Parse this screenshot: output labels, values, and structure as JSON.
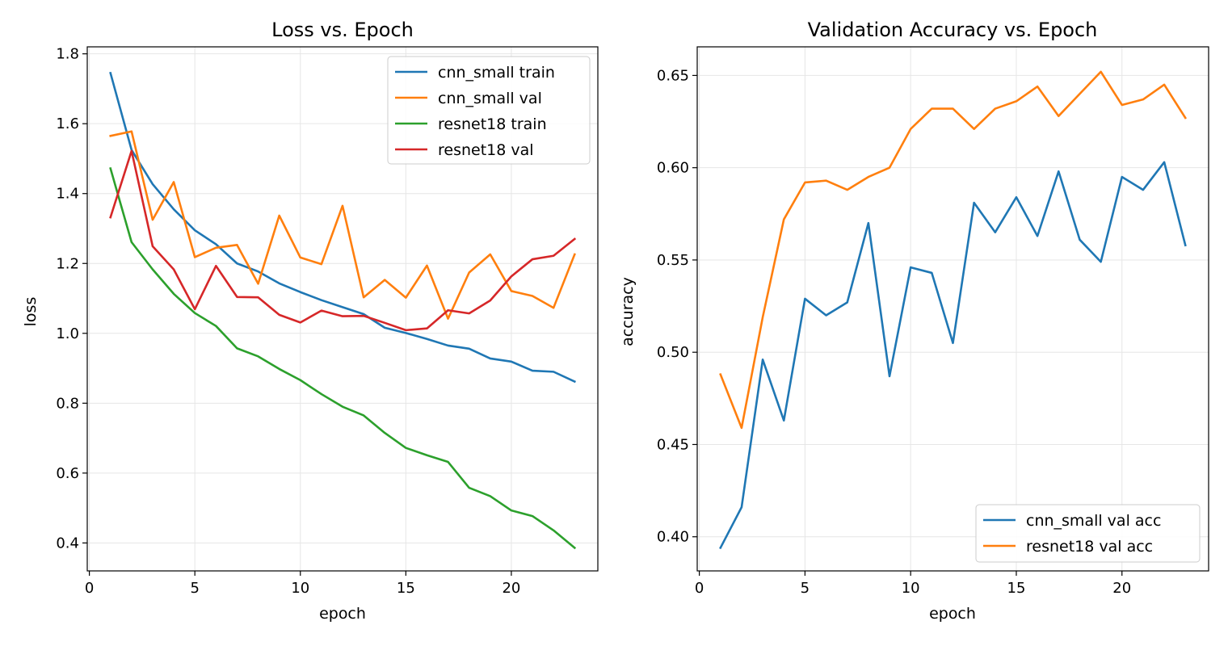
{
  "colors": {
    "blue": "#1f77b4",
    "orange": "#ff7f0e",
    "green": "#2ca02c",
    "red": "#d62728",
    "grid": "#e6e6e6"
  },
  "chart_data": [
    {
      "type": "line",
      "title": "Loss vs. Epoch",
      "xlabel": "epoch",
      "ylabel": "loss",
      "xlim": [
        -0.1,
        24.1
      ],
      "ylim": [
        0.32,
        1.82
      ],
      "xticks": [
        0,
        5,
        10,
        15,
        20
      ],
      "yticks": [
        0.4,
        0.6,
        0.8,
        1.0,
        1.2,
        1.4,
        1.6,
        1.8
      ],
      "ytick_labels": [
        "0.4",
        "0.6",
        "0.8",
        "1.0",
        "1.2",
        "1.4",
        "1.6",
        "1.8"
      ],
      "grid": true,
      "legend_position": "top-right",
      "x": [
        1,
        2,
        3,
        4,
        5,
        6,
        7,
        8,
        9,
        10,
        11,
        12,
        13,
        14,
        15,
        16,
        17,
        18,
        19,
        20,
        21,
        22,
        23
      ],
      "series": [
        {
          "name": "cnn_small train",
          "color": "#1f77b4",
          "values": [
            1.745,
            1.525,
            1.427,
            1.355,
            1.295,
            1.255,
            1.2,
            1.177,
            1.143,
            1.118,
            1.095,
            1.075,
            1.055,
            1.016,
            1.001,
            0.984,
            0.965,
            0.956,
            0.928,
            0.919,
            0.893,
            0.89,
            0.862
          ]
        },
        {
          "name": "cnn_small val",
          "color": "#ff7f0e",
          "values": [
            1.565,
            1.578,
            1.325,
            1.433,
            1.218,
            1.245,
            1.253,
            1.142,
            1.337,
            1.217,
            1.198,
            1.365,
            1.103,
            1.153,
            1.102,
            1.194,
            1.042,
            1.174,
            1.226,
            1.121,
            1.107,
            1.073,
            1.226
          ]
        },
        {
          "name": "resnet18 train",
          "color": "#2ca02c",
          "values": [
            1.472,
            1.261,
            1.183,
            1.113,
            1.058,
            1.021,
            0.957,
            0.934,
            0.898,
            0.866,
            0.826,
            0.79,
            0.765,
            0.715,
            0.672,
            0.651,
            0.632,
            0.558,
            0.534,
            0.493,
            0.477,
            0.436,
            0.386
          ]
        },
        {
          "name": "resnet18 val",
          "color": "#d62728",
          "values": [
            1.332,
            1.522,
            1.249,
            1.183,
            1.069,
            1.193,
            1.104,
            1.103,
            1.053,
            1.031,
            1.065,
            1.049,
            1.05,
            1.03,
            1.009,
            1.014,
            1.066,
            1.057,
            1.094,
            1.163,
            1.212,
            1.222,
            1.27
          ]
        }
      ]
    },
    {
      "type": "line",
      "title": "Validation Accuracy vs. Epoch",
      "xlabel": "epoch",
      "ylabel": "accuracy",
      "xlim": [
        -0.1,
        24.1
      ],
      "ylim": [
        0.3815,
        0.6655
      ],
      "xticks": [
        0,
        5,
        10,
        15,
        20
      ],
      "yticks": [
        0.4,
        0.45,
        0.5,
        0.55,
        0.6,
        0.65
      ],
      "ytick_labels": [
        "0.40",
        "0.45",
        "0.50",
        "0.55",
        "0.60",
        "0.65"
      ],
      "grid": true,
      "legend_position": "bottom-right",
      "x": [
        1,
        2,
        3,
        4,
        5,
        6,
        7,
        8,
        9,
        10,
        11,
        12,
        13,
        14,
        15,
        16,
        17,
        18,
        19,
        20,
        21,
        22,
        23
      ],
      "series": [
        {
          "name": "cnn_small val acc",
          "color": "#1f77b4",
          "values": [
            0.394,
            0.416,
            0.496,
            0.463,
            0.529,
            0.52,
            0.527,
            0.57,
            0.487,
            0.546,
            0.543,
            0.505,
            0.581,
            0.565,
            0.584,
            0.563,
            0.598,
            0.561,
            0.549,
            0.595,
            0.588,
            0.603,
            0.558
          ]
        },
        {
          "name": "resnet18 val acc",
          "color": "#ff7f0e",
          "values": [
            0.488,
            0.459,
            0.519,
            0.572,
            0.592,
            0.593,
            0.588,
            0.595,
            0.6,
            0.621,
            0.632,
            0.632,
            0.621,
            0.632,
            0.636,
            0.644,
            0.628,
            0.64,
            0.652,
            0.634,
            0.637,
            0.645,
            0.627
          ]
        }
      ]
    }
  ]
}
